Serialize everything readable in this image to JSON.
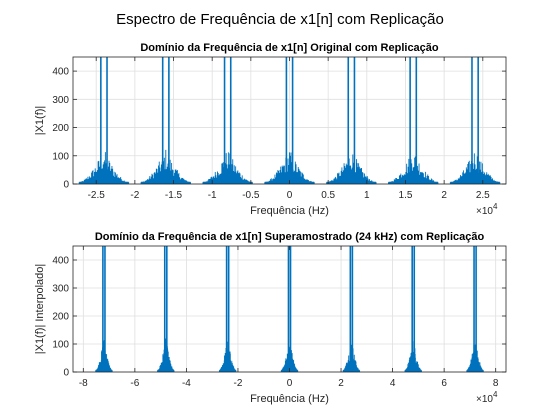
{
  "figure": {
    "suptitle": "Espectro de Frequência de x1[n] com Replicação",
    "line_color": "#0072BD",
    "background": "#ffffff"
  },
  "chart_data": [
    {
      "type": "line",
      "title": "Domínio da Frequência de x1[n] Original com Replicação",
      "xlabel": "Frequência (Hz)",
      "ylabel": "|X1(f)|",
      "x_exponent_label": "×10",
      "x_exponent_power": "4",
      "x_scale": 10000,
      "xlim": [
        -2.8,
        2.8
      ],
      "ylim": [
        0,
        450
      ],
      "xticks": [
        -2.5,
        -2,
        -1.5,
        -1,
        -0.5,
        0,
        0.5,
        1,
        1.5,
        2,
        2.5
      ],
      "xtick_labels": [
        "-2.5",
        "-2",
        "-1.5",
        "-1",
        "-0.5",
        "0",
        "0.5",
        "1",
        "1.5",
        "2",
        "2.5"
      ],
      "yticks": [
        0,
        100,
        200,
        300,
        400
      ],
      "ytick_labels": [
        "0",
        "100",
        "200",
        "300",
        "400"
      ],
      "grid": true,
      "replica_centers": [
        -2.4,
        -1.6,
        -0.8,
        0,
        0.8,
        1.6,
        2.4
      ],
      "replica_period": 0.8,
      "peak_offsets": [
        -0.04,
        0.04
      ],
      "peak_height": 450,
      "spectrum_halfwidth": 0.32,
      "sideband_level": 120
    },
    {
      "type": "line",
      "title": "Domínio da Frequência de x1[n] Superamostrado (24 kHz) com Replicação",
      "xlabel": "Frequência (Hz)",
      "ylabel": "|X1(f)| Interpolado|",
      "x_exponent_label": "×10",
      "x_exponent_power": "4",
      "x_scale": 10000,
      "xlim": [
        -8.4,
        8.4
      ],
      "ylim": [
        0,
        450
      ],
      "xticks": [
        -8,
        -6,
        -4,
        -2,
        0,
        2,
        4,
        6,
        8
      ],
      "xtick_labels": [
        "-8",
        "-6",
        "-4",
        "-2",
        "0",
        "2",
        "4",
        "6",
        "8"
      ],
      "yticks": [
        0,
        100,
        200,
        300,
        400
      ],
      "ytick_labels": [
        "0",
        "100",
        "200",
        "300",
        "400"
      ],
      "grid": true,
      "replica_centers": [
        -7.2,
        -4.8,
        -2.4,
        0,
        2.4,
        4.8,
        7.2
      ],
      "replica_period": 2.4,
      "peak_offsets": [
        -0.04,
        0.04
      ],
      "peak_height": 450,
      "spectrum_halfwidth": 0.32,
      "sideband_level": 120
    }
  ]
}
